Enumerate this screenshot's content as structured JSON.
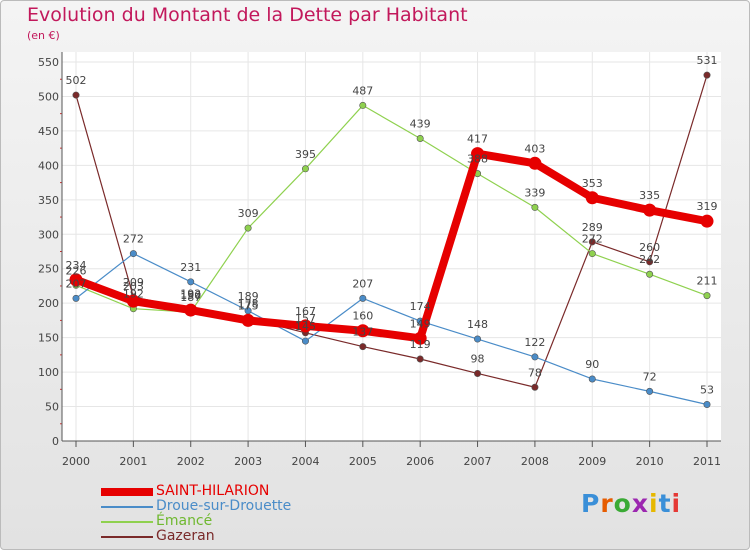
{
  "title": "Evolution du Montant de la Dette par Habitant",
  "subtitle": "(en €)",
  "brand": {
    "text": "Proxiti",
    "letter_colors": [
      "#3a8fd8",
      "#e65c00",
      "#3aaa35",
      "#9c27b0",
      "#e6b800",
      "#3a8fd8",
      "#e53935"
    ]
  },
  "chart_data": {
    "type": "line",
    "title": "Evolution du Montant de la Dette par Habitant",
    "subtitle": "(en €)",
    "xlabel": "",
    "ylabel": "",
    "x": [
      "2000",
      "2001",
      "2002",
      "2003",
      "2004",
      "2005",
      "2006",
      "2007",
      "2008",
      "2009",
      "2010",
      "2011"
    ],
    "ylim": [
      0,
      550
    ],
    "yticks": [
      "0",
      "50",
      "100",
      "150",
      "200",
      "250",
      "300",
      "350",
      "400",
      "450",
      "500",
      "550"
    ],
    "grid": true,
    "legend_position": "bottom-left",
    "series": [
      {
        "name": "Gazeran",
        "color": "#7a2a2a",
        "values": [
          502,
          209,
          192,
          178,
          157,
          137,
          119,
          98,
          78,
          289,
          260,
          531
        ]
      },
      {
        "name": "Émancé",
        "color": "#8fd14f",
        "values": [
          226,
          192,
          187,
          309,
          395,
          487,
          439,
          388,
          339,
          272,
          242,
          211
        ]
      },
      {
        "name": "Droue-sur-Drouette",
        "color": "#4a8cc8",
        "values": [
          207,
          272,
          231,
          189,
          145,
          207,
          174,
          148,
          122,
          90,
          72,
          53
        ]
      },
      {
        "name": "SAINT-HILARION",
        "color": "#e60000",
        "values": [
          234,
          203,
          190,
          175,
          167,
          160,
          149,
          417,
          403,
          353,
          335,
          319
        ]
      }
    ],
    "legend_order": [
      "SAINT-HILARION",
      "Droue-sur-Drouette",
      "Émancé",
      "Gazeran"
    ],
    "data_labels": [
      {
        "series": "Gazeran",
        "values": [
          "502",
          "209",
          "192",
          "178",
          "157",
          "137",
          "119",
          "98",
          "78",
          "289",
          "260",
          "531"
        ]
      },
      {
        "series": "Émancé",
        "values": [
          "226",
          "192",
          "187",
          "309",
          "395",
          "487",
          "439",
          "388",
          "339",
          "272",
          "242",
          "211"
        ]
      },
      {
        "series": "Droue-sur-Drouette",
        "values": [
          "207",
          "272",
          "231",
          "189",
          "145",
          "207",
          "174",
          "148",
          "122",
          "90",
          "72",
          "53"
        ]
      },
      {
        "series": "SAINT-HILARION",
        "values": [
          "234",
          "203",
          "190",
          "175",
          "167",
          "160",
          "149",
          "417",
          "403",
          "353",
          "335",
          "319"
        ]
      }
    ]
  }
}
